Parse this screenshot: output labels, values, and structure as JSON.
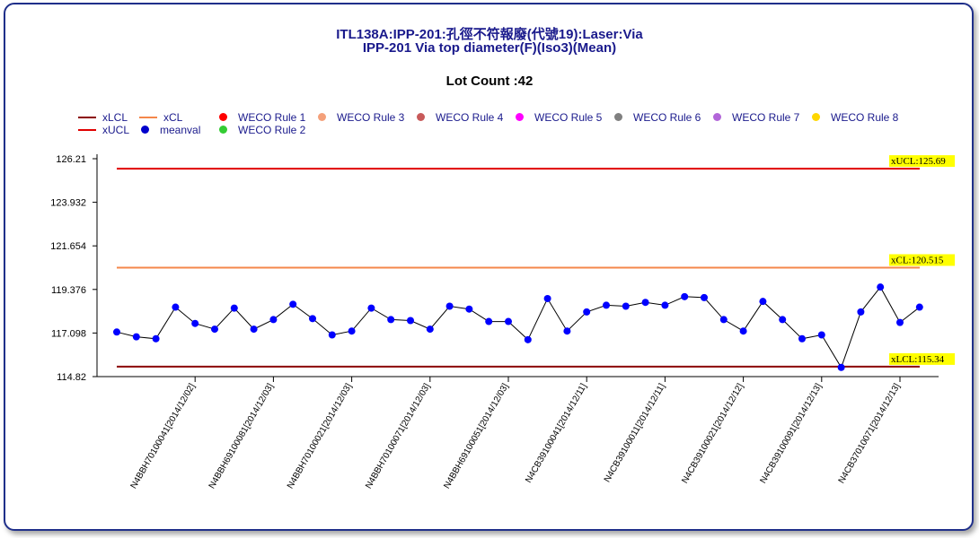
{
  "title_line1": "ITL138A:IPP-201:孔徑不符報廢(代號19):Laser:Via",
  "title_line2": "IPP-201 Via top diameter(F)(Iso3)(Mean)",
  "lot_count": "Lot Count :42",
  "legend": [
    {
      "label": "xLCL",
      "kind": "line",
      "color": "#8b0000"
    },
    {
      "label": "xUCL",
      "kind": "line",
      "color": "#e00000"
    },
    {
      "label": "xCL",
      "kind": "line",
      "color": "#f4874b"
    },
    {
      "label": "meanval",
      "kind": "dot",
      "color": "#0000cc"
    },
    {
      "label": "WECO Rule 1",
      "kind": "dot",
      "color": "#ff0000"
    },
    {
      "label": "WECO Rule 2",
      "kind": "dot",
      "color": "#33cc33"
    },
    {
      "label": "WECO Rule 3",
      "kind": "dot",
      "color": "#f4a07a"
    },
    {
      "label": "WECO Rule 4",
      "kind": "dot",
      "color": "#c85a5a"
    },
    {
      "label": "WECO Rule 5",
      "kind": "dot",
      "color": "#ff00ff"
    },
    {
      "label": "WECO Rule 6",
      "kind": "dot",
      "color": "#808080"
    },
    {
      "label": "WECO Rule 7",
      "kind": "dot",
      "color": "#b266d9"
    },
    {
      "label": "WECO Rule 8",
      "kind": "dot",
      "color": "#ffd700"
    }
  ],
  "chart_data": {
    "type": "line",
    "y_ticks": [
      "126.21",
      "123.932",
      "121.654",
      "119.376",
      "117.098",
      "114.82"
    ],
    "ylim": [
      114.82,
      126.21
    ],
    "control_limits": [
      {
        "name": "xUCL",
        "value": 125.69,
        "label": "xUCL:125.69",
        "color": "#e00000"
      },
      {
        "name": "xCL",
        "value": 120.515,
        "label": "xCL:120.515",
        "color": "#f4874b"
      },
      {
        "name": "xLCL",
        "value": 115.34,
        "label": "xLCL:115.34",
        "color": "#8b0000"
      }
    ],
    "x_tick_labels": [
      "N4BBH70100041[2014/12/02]",
      "N4BBH69100081[2014/12/03]",
      "N4BBH70100021[2014/12/03]",
      "N4BBH70100071[2014/12/03]",
      "N4BBH69100051[2014/12/03]",
      "N4CB39100041[2014/12/11]",
      "N4CB39100011[2014/12/11]",
      "N4CB39100021[2014/12/12]",
      "N4CB39100091[2014/12/13]",
      "N4CB37010071[2014/12/13]"
    ],
    "x_tick_positions": [
      4,
      8,
      12,
      16,
      20,
      24,
      28,
      32,
      36,
      40
    ],
    "series": [
      {
        "name": "meanval",
        "color": "#0000ff",
        "values": [
          117.15,
          116.9,
          116.8,
          118.45,
          117.6,
          117.3,
          118.4,
          117.3,
          117.8,
          118.6,
          117.85,
          117.0,
          117.2,
          118.4,
          117.8,
          117.75,
          117.3,
          118.5,
          118.35,
          117.7,
          117.7,
          116.75,
          118.9,
          117.2,
          118.2,
          118.55,
          118.5,
          118.7,
          118.55,
          119.0,
          118.95,
          117.8,
          117.2,
          118.75,
          117.8,
          116.8,
          117.0,
          115.3,
          118.2,
          119.5,
          117.65,
          118.45
        ]
      }
    ]
  }
}
